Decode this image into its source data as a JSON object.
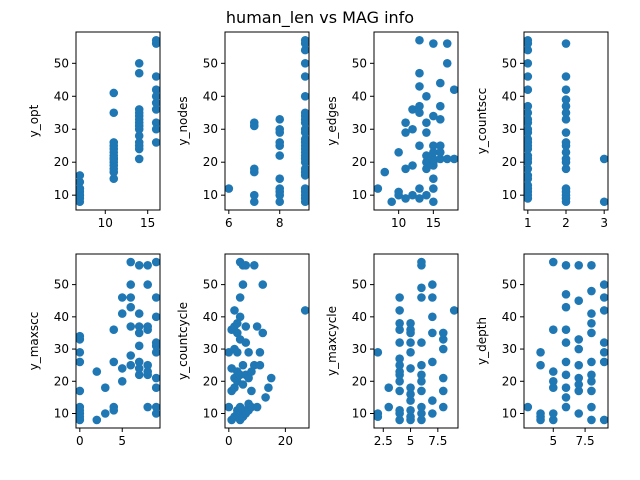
{
  "figure": {
    "title": "human_len vs MAG info"
  },
  "style": {
    "point_color": "#1f77b4",
    "axes_color": "#000000",
    "background": "#ffffff"
  },
  "chart_data": [
    {
      "type": "scatter",
      "ylabel": "y_opt",
      "xlim": [
        6.55,
        16.45
      ],
      "ylim": [
        5.5,
        59.5
      ],
      "xticks": [
        10,
        15
      ],
      "yticks": [
        10,
        20,
        30,
        40,
        50
      ],
      "x": [
        7,
        7,
        7,
        7,
        7,
        7,
        7,
        7,
        7,
        11,
        11,
        11,
        11,
        11,
        11,
        11,
        11,
        11,
        11,
        11,
        11,
        11,
        11,
        14,
        14,
        14,
        14,
        14,
        14,
        14,
        14,
        14,
        14,
        14,
        14,
        14,
        14,
        16,
        16,
        16,
        16,
        16,
        16,
        16,
        16,
        16,
        16
      ],
      "y": [
        8,
        9,
        10,
        11,
        12,
        14,
        16,
        10,
        12,
        15,
        17,
        18,
        19,
        20,
        21,
        22,
        23,
        24,
        25,
        26,
        35,
        41,
        21,
        21,
        24,
        26,
        28,
        30,
        31,
        32,
        33,
        34,
        35,
        36,
        47,
        50,
        25,
        26,
        32,
        36,
        38,
        42,
        46,
        56,
        57,
        30,
        40
      ]
    },
    {
      "type": "scatter",
      "ylabel": "y_nodes",
      "xlim": [
        5.85,
        9.15
      ],
      "ylim": [
        5.5,
        59.5
      ],
      "xticks": [
        6,
        8
      ],
      "yticks": [
        10,
        20,
        30,
        40,
        50
      ],
      "x": [
        6,
        7,
        7,
        7,
        7,
        7,
        7,
        8,
        8,
        8,
        8,
        8,
        8,
        8,
        8,
        8,
        8,
        8,
        9,
        9,
        9,
        9,
        9,
        9,
        9,
        9,
        9,
        9,
        9,
        9,
        9,
        9,
        9,
        9,
        9,
        9,
        9,
        9,
        9,
        9,
        9,
        9,
        9,
        9,
        9,
        9
      ],
      "y": [
        12,
        32,
        8,
        10,
        17,
        18,
        31,
        8,
        10,
        11,
        12,
        15,
        22,
        25,
        26,
        29,
        30,
        33,
        8,
        9,
        10,
        11,
        12,
        16,
        17,
        18,
        20,
        21,
        22,
        23,
        24,
        25,
        26,
        27,
        29,
        30,
        32,
        33,
        34,
        35,
        40,
        46,
        50,
        54,
        56,
        57
      ]
    },
    {
      "type": "scatter",
      "ylabel": "y_edges",
      "xlim": [
        6.45,
        18.55
      ],
      "ylim": [
        5.5,
        59.5
      ],
      "xticks": [
        10,
        15
      ],
      "yticks": [
        10,
        20,
        30,
        40,
        50
      ],
      "x": [
        7,
        8,
        9,
        10,
        10,
        10,
        11,
        11,
        11,
        11,
        12,
        12,
        12,
        12,
        13,
        13,
        13,
        13,
        13,
        13,
        13,
        14,
        14,
        14,
        14,
        14,
        14,
        14,
        15,
        15,
        15,
        15,
        15,
        15,
        15,
        15,
        15,
        15,
        16,
        16,
        16,
        16,
        16,
        16,
        17,
        17,
        17,
        18,
        18,
        13
      ],
      "y": [
        12,
        17,
        8,
        10,
        11,
        23,
        9,
        18,
        29,
        32,
        10,
        19,
        30,
        36,
        9,
        12,
        25,
        35,
        37,
        43,
        57,
        10,
        18,
        20,
        22,
        29,
        32,
        40,
        8,
        12,
        15,
        19,
        20,
        21,
        23,
        25,
        34,
        56,
        21,
        23,
        25,
        33,
        37,
        44,
        21,
        50,
        56,
        21,
        42,
        47
      ]
    },
    {
      "type": "scatter",
      "ylabel": "y_countscc",
      "xlim": [
        0.9,
        3.1
      ],
      "ylim": [
        5.5,
        59.5
      ],
      "xticks": [
        1,
        2,
        3
      ],
      "yticks": [
        10,
        20,
        30,
        40,
        50
      ],
      "x": [
        1,
        1,
        1,
        1,
        1,
        1,
        1,
        1,
        1,
        1,
        1,
        1,
        1,
        1,
        1,
        1,
        1,
        1,
        1,
        1,
        1,
        1,
        1,
        1,
        1,
        1,
        1,
        2,
        2,
        2,
        2,
        2,
        2,
        2,
        2,
        2,
        2,
        2,
        2,
        2,
        2,
        2,
        2,
        2,
        2,
        2,
        3,
        3
      ],
      "y": [
        9,
        10,
        11,
        12,
        13,
        15,
        16,
        18,
        20,
        21,
        22,
        24,
        25,
        26,
        27,
        29,
        30,
        32,
        33,
        35,
        37,
        42,
        46,
        50,
        54,
        56,
        57,
        8,
        9,
        10,
        11,
        12,
        18,
        20,
        21,
        23,
        25,
        26,
        29,
        33,
        35,
        37,
        39,
        42,
        46,
        56,
        8,
        21
      ]
    },
    {
      "type": "scatter",
      "ylabel": "y_maxscc",
      "xlim": [
        -0.45,
        9.45
      ],
      "ylim": [
        5.5,
        59.5
      ],
      "xticks": [
        0,
        5
      ],
      "yticks": [
        10,
        20,
        30,
        40,
        50
      ],
      "x": [
        0,
        0,
        0,
        0,
        0,
        0,
        0,
        0,
        0,
        0,
        2,
        2,
        3,
        3,
        4,
        4,
        4,
        4,
        5,
        5,
        5,
        5,
        6,
        6,
        6,
        6,
        6,
        6,
        6,
        7,
        7,
        7,
        7,
        7,
        7,
        7,
        7,
        8,
        8,
        8,
        8,
        8,
        8,
        8,
        8,
        9,
        9,
        9,
        9,
        9,
        9,
        9,
        9,
        9,
        9
      ],
      "y": [
        8,
        9,
        10,
        11,
        12,
        17,
        26,
        29,
        33,
        34,
        8,
        23,
        10,
        18,
        11,
        12,
        26,
        36,
        20,
        24,
        41,
        46,
        25,
        28,
        37,
        43,
        46,
        50,
        57,
        22,
        24,
        26,
        31,
        35,
        37,
        41,
        56,
        12,
        22,
        23,
        25,
        36,
        37,
        50,
        56,
        10,
        12,
        18,
        21,
        29,
        31,
        32,
        40,
        46,
        57
      ]
    },
    {
      "type": "scatter",
      "ylabel": "y_countcycle",
      "xlim": [
        -1.35,
        28.35
      ],
      "ylim": [
        5.5,
        59.5
      ],
      "xticks": [
        0,
        20
      ],
      "yticks": [
        10,
        20,
        30,
        40,
        50
      ],
      "x": [
        0,
        0,
        1,
        1,
        1,
        1,
        2,
        2,
        2,
        2,
        2,
        2,
        3,
        3,
        3,
        3,
        3,
        3,
        3,
        4,
        4,
        4,
        4,
        4,
        4,
        4,
        4,
        5,
        5,
        5,
        5,
        5,
        5,
        6,
        6,
        6,
        6,
        6,
        6,
        7,
        7,
        7,
        7,
        8,
        8,
        8,
        9,
        9,
        10,
        10,
        11,
        11,
        12,
        12,
        13,
        14,
        15,
        27
      ],
      "y": [
        12,
        29,
        8,
        17,
        24,
        36,
        9,
        18,
        21,
        30,
        37,
        42,
        10,
        11,
        20,
        23,
        29,
        35,
        38,
        8,
        10,
        12,
        22,
        33,
        40,
        46,
        57,
        9,
        11,
        19,
        25,
        50,
        56,
        10,
        11,
        22,
        32,
        37,
        56,
        11,
        13,
        21,
        29,
        12,
        17,
        23,
        25,
        56,
        37,
        12,
        25,
        29,
        35,
        50,
        15,
        18,
        21,
        42
      ]
    },
    {
      "type": "scatter",
      "ylabel": "y_maxcycle",
      "xlim": [
        1.65,
        9.35
      ],
      "ylim": [
        5.5,
        59.5
      ],
      "xticks": [
        2.5,
        5.0,
        7.5
      ],
      "yticks": [
        10,
        20,
        30,
        40,
        50
      ],
      "x": [
        2,
        2,
        2,
        3,
        3,
        4,
        4,
        4,
        4,
        4,
        4,
        4,
        4,
        4,
        4,
        4,
        4,
        4,
        4,
        5,
        5,
        5,
        5,
        5,
        5,
        5,
        5,
        5,
        5,
        5,
        5,
        6,
        6,
        6,
        6,
        6,
        6,
        6,
        6,
        6,
        6,
        6,
        6,
        7,
        7,
        7,
        7,
        7,
        7,
        7,
        8,
        8,
        8,
        8,
        8,
        8,
        9
      ],
      "y": [
        9,
        10,
        29,
        12,
        18,
        8,
        10,
        11,
        17,
        20,
        22,
        23,
        25,
        27,
        32,
        36,
        38,
        42,
        46,
        8,
        9,
        11,
        14,
        16,
        18,
        24,
        29,
        32,
        35,
        36,
        38,
        8,
        10,
        12,
        17,
        20,
        22,
        25,
        32,
        46,
        49,
        56,
        57,
        10,
        14,
        26,
        35,
        40,
        46,
        50,
        12,
        17,
        21,
        30,
        33,
        35,
        42
      ]
    },
    {
      "type": "scatter",
      "ylabel": "y_depth",
      "xlim": [
        2.7,
        9.3
      ],
      "ylim": [
        5.5,
        59.5
      ],
      "xticks": [
        5.0,
        7.5
      ],
      "yticks": [
        10,
        20,
        30,
        40,
        50
      ],
      "x": [
        3,
        4,
        4,
        4,
        4,
        4,
        5,
        5,
        5,
        5,
        5,
        5,
        5,
        6,
        6,
        6,
        6,
        6,
        6,
        6,
        6,
        6,
        6,
        7,
        7,
        7,
        7,
        7,
        7,
        7,
        7,
        7,
        8,
        8,
        8,
        8,
        8,
        8,
        8,
        8,
        8,
        8,
        8,
        9,
        9,
        9,
        9,
        9,
        9,
        9
      ],
      "y": [
        12,
        8,
        9,
        10,
        25,
        29,
        8,
        10,
        18,
        20,
        23,
        36,
        57,
        12,
        15,
        18,
        22,
        26,
        32,
        36,
        43,
        47,
        56,
        10,
        17,
        19,
        21,
        25,
        30,
        33,
        45,
        56,
        8,
        12,
        17,
        20,
        22,
        26,
        35,
        38,
        41,
        48,
        56,
        8,
        26,
        29,
        42,
        46,
        50,
        32
      ]
    }
  ]
}
